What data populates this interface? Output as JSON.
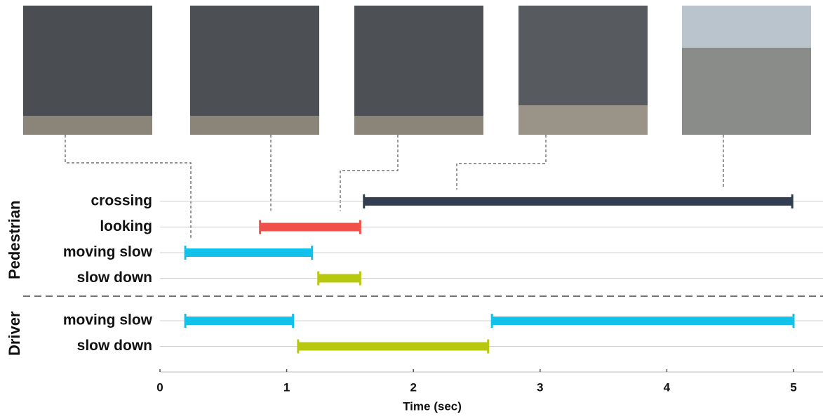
{
  "chart_data": {
    "type": "gantt",
    "xlabel": "Time (sec)",
    "xlim": [
      0,
      5.2
    ],
    "xticks": [
      0,
      1,
      2,
      3,
      4,
      5
    ],
    "grid": true,
    "groups": [
      {
        "name": "Pedestrian",
        "rows": [
          {
            "name": "crossing",
            "color": "#323e50",
            "intervals": [
              [
                1.61,
                4.99
              ]
            ]
          },
          {
            "name": "looking",
            "color": "#f0504a",
            "intervals": [
              [
                0.79,
                1.58
              ]
            ]
          },
          {
            "name": "moving slow",
            "color": "#12c2ea",
            "intervals": [
              [
                0.2,
                1.2
              ]
            ]
          },
          {
            "name": "slow down",
            "color": "#b8c80e",
            "intervals": [
              [
                1.25,
                1.58
              ]
            ]
          }
        ]
      },
      {
        "name": "Driver",
        "rows": [
          {
            "name": "moving slow",
            "color": "#12c2ea",
            "intervals": [
              [
                0.2,
                1.05
              ],
              [
                2.62,
                5.0
              ]
            ]
          },
          {
            "name": "slow down",
            "color": "#b8c80e",
            "intervals": [
              [
                1.09,
                2.59
              ]
            ]
          }
        ]
      }
    ]
  }
}
